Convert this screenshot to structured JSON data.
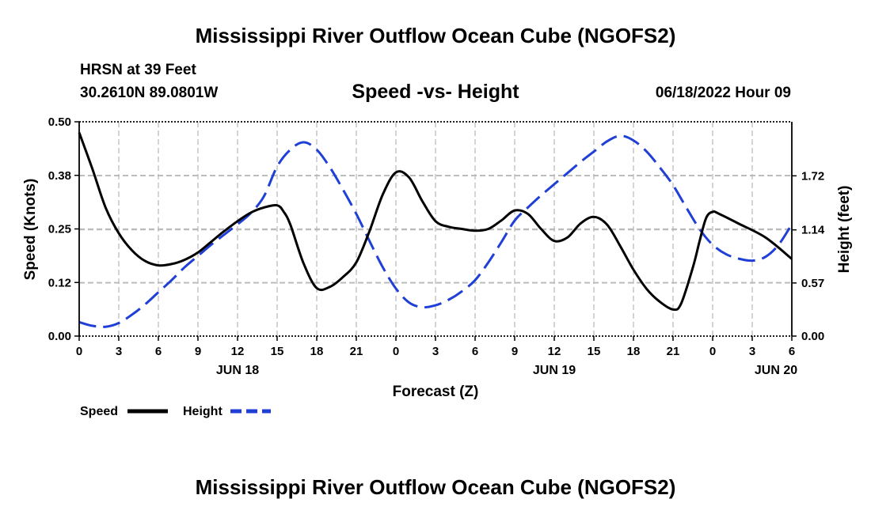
{
  "header": {
    "title": "Mississippi River Outflow Ocean Cube (NGOFS2)",
    "station": "HRSN at 39 Feet",
    "coords": "30.2610N  89.0801W",
    "datetime": "06/18/2022 Hour 09",
    "footer_title": "Mississippi River Outflow Ocean Cube (NGOFS2)"
  },
  "chart_data": {
    "type": "line",
    "title": "Speed -vs- Height",
    "xlabel": "Forecast (Z)",
    "ylabel": "Speed (Knots)",
    "y2label": "Height (feet)",
    "x_unit": "hours from Jun 18 00Z",
    "xlim": [
      0,
      54
    ],
    "ylim": [
      0,
      0.5
    ],
    "y2lim": [
      0,
      2.3
    ],
    "grid": true,
    "x_ticks": [
      {
        "x": 0,
        "label": "0"
      },
      {
        "x": 3,
        "label": "3"
      },
      {
        "x": 6,
        "label": "6"
      },
      {
        "x": 9,
        "label": "9"
      },
      {
        "x": 12,
        "label": "12"
      },
      {
        "x": 15,
        "label": "15"
      },
      {
        "x": 18,
        "label": "18"
      },
      {
        "x": 21,
        "label": "21"
      },
      {
        "x": 24,
        "label": "0"
      },
      {
        "x": 27,
        "label": "3"
      },
      {
        "x": 30,
        "label": "6"
      },
      {
        "x": 33,
        "label": "9"
      },
      {
        "x": 36,
        "label": "12"
      },
      {
        "x": 39,
        "label": "15"
      },
      {
        "x": 42,
        "label": "18"
      },
      {
        "x": 45,
        "label": "21"
      },
      {
        "x": 48,
        "label": "0"
      },
      {
        "x": 51,
        "label": "3"
      },
      {
        "x": 54,
        "label": "6"
      }
    ],
    "date_labels": [
      {
        "x": 12,
        "label": "JUN 18"
      },
      {
        "x": 36,
        "label": "JUN 19"
      },
      {
        "x": 52.8,
        "label": "JUN 20"
      }
    ],
    "y_ticks": [
      {
        "value": 0,
        "label": "0.00"
      },
      {
        "value": 0.125,
        "label": "0.12"
      },
      {
        "value": 0.25,
        "label": "0.25"
      },
      {
        "value": 0.375,
        "label": "0.38"
      },
      {
        "value": 0.5,
        "label": "0.50"
      }
    ],
    "y2_ticks": [
      {
        "value": 0,
        "label": "0.00"
      },
      {
        "value": 0.57,
        "label": "0.57"
      },
      {
        "value": 1.14,
        "label": "1.14"
      },
      {
        "value": 1.72,
        "label": "1.72"
      }
    ],
    "series": [
      {
        "name": "Speed",
        "axis": "left",
        "color": "#000000",
        "dash": "solid",
        "points": [
          [
            0,
            0.475
          ],
          [
            1,
            0.39
          ],
          [
            2,
            0.3
          ],
          [
            3,
            0.24
          ],
          [
            4,
            0.2
          ],
          [
            5,
            0.175
          ],
          [
            6,
            0.165
          ],
          [
            7,
            0.168
          ],
          [
            8,
            0.178
          ],
          [
            9,
            0.195
          ],
          [
            10,
            0.22
          ],
          [
            11,
            0.245
          ],
          [
            12,
            0.268
          ],
          [
            13,
            0.288
          ],
          [
            14,
            0.3
          ],
          [
            15,
            0.305
          ],
          [
            15.5,
            0.29
          ],
          [
            16,
            0.26
          ],
          [
            17,
            0.17
          ],
          [
            18,
            0.112
          ],
          [
            19,
            0.115
          ],
          [
            20,
            0.138
          ],
          [
            21,
            0.172
          ],
          [
            22,
            0.245
          ],
          [
            23,
            0.33
          ],
          [
            24,
            0.382
          ],
          [
            25,
            0.37
          ],
          [
            26,
            0.315
          ],
          [
            27,
            0.268
          ],
          [
            28,
            0.255
          ],
          [
            29,
            0.25
          ],
          [
            30,
            0.246
          ],
          [
            31,
            0.25
          ],
          [
            32,
            0.27
          ],
          [
            33,
            0.293
          ],
          [
            34,
            0.285
          ],
          [
            35,
            0.25
          ],
          [
            36,
            0.222
          ],
          [
            37,
            0.23
          ],
          [
            38,
            0.263
          ],
          [
            39,
            0.278
          ],
          [
            40,
            0.26
          ],
          [
            41,
            0.21
          ],
          [
            42,
            0.155
          ],
          [
            43,
            0.11
          ],
          [
            44,
            0.08
          ],
          [
            45,
            0.062
          ],
          [
            45.6,
            0.075
          ],
          [
            46.5,
            0.16
          ],
          [
            47,
            0.22
          ],
          [
            47.5,
            0.275
          ],
          [
            48,
            0.29
          ],
          [
            48.5,
            0.285
          ],
          [
            50,
            0.262
          ],
          [
            52,
            0.23
          ],
          [
            54,
            0.18
          ]
        ]
      },
      {
        "name": "Height",
        "axis": "right",
        "color": "#1f3fd6",
        "dash": "dashed",
        "points": [
          [
            0,
            0.15
          ],
          [
            1,
            0.11
          ],
          [
            2,
            0.1
          ],
          [
            3,
            0.14
          ],
          [
            4,
            0.23
          ],
          [
            5,
            0.34
          ],
          [
            6,
            0.47
          ],
          [
            7,
            0.6
          ],
          [
            8,
            0.74
          ],
          [
            9,
            0.86
          ],
          [
            10,
            0.98
          ],
          [
            11,
            1.09
          ],
          [
            12,
            1.2
          ],
          [
            13,
            1.32
          ],
          [
            14,
            1.5
          ],
          [
            15,
            1.82
          ],
          [
            16,
            2.0
          ],
          [
            17,
            2.08
          ],
          [
            18,
            2.0
          ],
          [
            19,
            1.81
          ],
          [
            20,
            1.57
          ],
          [
            21,
            1.31
          ],
          [
            22,
            1.02
          ],
          [
            23,
            0.74
          ],
          [
            24,
            0.51
          ],
          [
            25,
            0.36
          ],
          [
            26,
            0.31
          ],
          [
            27,
            0.33
          ],
          [
            28,
            0.39
          ],
          [
            29,
            0.48
          ],
          [
            30,
            0.6
          ],
          [
            31,
            0.79
          ],
          [
            32,
            1.01
          ],
          [
            33,
            1.24
          ],
          [
            34,
            1.38
          ],
          [
            35,
            1.51
          ],
          [
            36,
            1.63
          ],
          [
            37,
            1.75
          ],
          [
            38,
            1.87
          ],
          [
            39,
            1.98
          ],
          [
            40,
            2.09
          ],
          [
            41,
            2.15
          ],
          [
            42,
            2.1
          ],
          [
            43,
            1.98
          ],
          [
            44,
            1.81
          ],
          [
            45,
            1.62
          ],
          [
            46,
            1.38
          ],
          [
            47,
            1.15
          ],
          [
            48,
            0.98
          ],
          [
            49,
            0.88
          ],
          [
            50,
            0.83
          ],
          [
            51,
            0.81
          ],
          [
            52,
            0.85
          ],
          [
            53,
            0.98
          ],
          [
            54,
            1.2
          ]
        ]
      }
    ]
  },
  "legend": {
    "items": [
      {
        "label": "Speed",
        "color": "#000000",
        "dash": "solid"
      },
      {
        "label": "Height",
        "color": "#1f3fd6",
        "dash": "dashed"
      }
    ]
  }
}
